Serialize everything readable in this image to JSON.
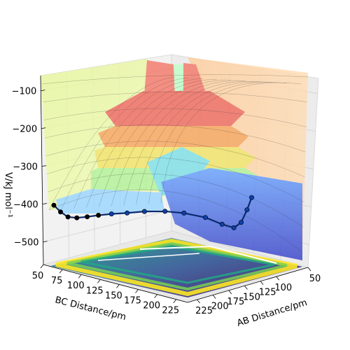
{
  "chart_data": {
    "type": "surface3d",
    "title": "",
    "xlabel": "BC Distance/pm",
    "ylabel": "AB Distance/pm",
    "zlabel": "V/kJ mol⁻¹",
    "x_ticks": [
      "50",
      "75",
      "100",
      "125",
      "150",
      "175",
      "200",
      "225"
    ],
    "y_ticks": [
      "50",
      "100",
      "125",
      "150",
      "175",
      "200",
      "225"
    ],
    "z_ticks": [
      "−100",
      "−200",
      "−300",
      "−400",
      "−500"
    ],
    "x_range": [
      50,
      240
    ],
    "y_range": [
      50,
      240
    ],
    "z_range": [
      -560,
      -60
    ],
    "series": [
      {
        "kind": "trajectory",
        "color": "#0b2a6e",
        "points": [
          {
            "x": 55,
            "y": 230,
            "z": -405
          },
          {
            "x": 62,
            "y": 228,
            "z": -420
          },
          {
            "x": 70,
            "y": 226,
            "z": -430
          },
          {
            "x": 80,
            "y": 224,
            "z": -428
          },
          {
            "x": 92,
            "y": 222,
            "z": -420
          },
          {
            "x": 105,
            "y": 220,
            "z": -410
          },
          {
            "x": 118,
            "y": 215,
            "z": -402
          },
          {
            "x": 130,
            "y": 205,
            "z": -398
          },
          {
            "x": 140,
            "y": 190,
            "z": -396
          },
          {
            "x": 150,
            "y": 170,
            "z": -400
          },
          {
            "x": 158,
            "y": 150,
            "z": -410
          },
          {
            "x": 165,
            "y": 125,
            "z": -430
          },
          {
            "x": 170,
            "y": 105,
            "z": -455
          },
          {
            "x": 173,
            "y": 90,
            "z": -470
          },
          {
            "x": 174,
            "y": 80,
            "z": -460
          },
          {
            "x": 175,
            "y": 72,
            "z": -430
          },
          {
            "x": 176,
            "y": 66,
            "z": -400
          }
        ]
      }
    ],
    "grid": true,
    "colormap_surface": "jet",
    "colormap_contour": "viridis"
  }
}
